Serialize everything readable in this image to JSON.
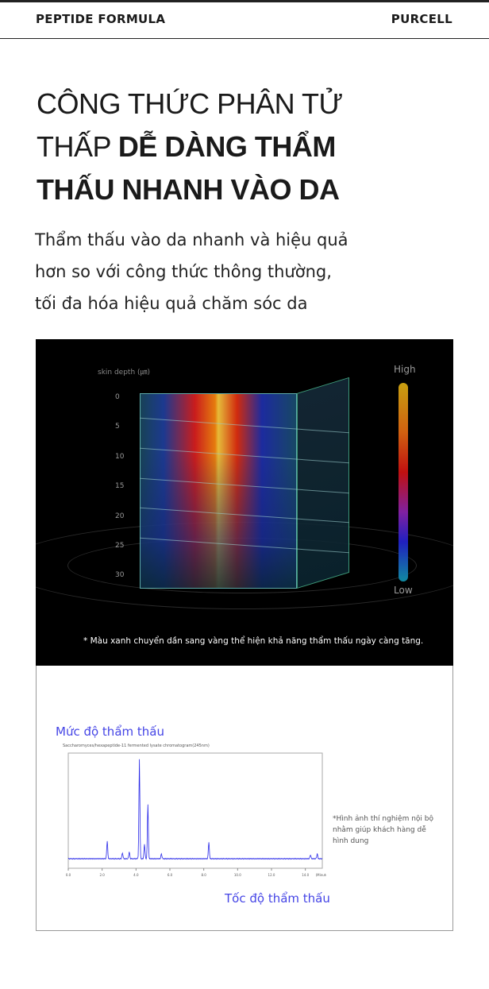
{
  "header": {
    "left": "PEPTIDE FORMULA",
    "right": "PURCELL"
  },
  "headline": {
    "line1": "CÔNG THỨC PHÂN TỬ",
    "line2_light": "THẤP ",
    "line2_bold": "DỄ DÀNG THẨM",
    "line3_bold": "THẤU NHANH VÀO DA"
  },
  "subtitle": [
    "Thẩm thấu vào da nhanh và hiệu quả",
    "hơn so với công thức thông thường,",
    "tối đa hóa hiệu quả chăm sóc da"
  ],
  "heatmap": {
    "depth_label": "skin depth (㎛)",
    "depth_ticks": [
      "0",
      "5",
      "10",
      "15",
      "20",
      "25",
      "30"
    ],
    "scale_high": "High",
    "scale_low": "Low",
    "note": "* Màu xanh chuyển dần sang vàng thể hiện khả năng thẩm thấu ngày càng tăng."
  },
  "chart_data": {
    "type": "line",
    "title": "Mức độ thẩm thấu",
    "caption": "Saccharomyces/hexapeptide-11 fermented lysate chromatogram(245nm)",
    "xlabel": "Tốc độ thẩm thấu",
    "x_unit": "(Minute)",
    "x_ticks": [
      "0.0",
      "2.0",
      "4.0",
      "6.0",
      "8.0",
      "10.0",
      "12.0",
      "14.0"
    ],
    "xlim": [
      0,
      15
    ],
    "color": "#2a2ae8",
    "peaks": [
      {
        "x": 2.3,
        "h": 0.18
      },
      {
        "x": 3.2,
        "h": 0.06
      },
      {
        "x": 3.6,
        "h": 0.07
      },
      {
        "x": 4.2,
        "h": 1.0
      },
      {
        "x": 4.5,
        "h": 0.15
      },
      {
        "x": 4.7,
        "h": 0.55
      },
      {
        "x": 5.5,
        "h": 0.05
      },
      {
        "x": 8.3,
        "h": 0.17
      },
      {
        "x": 14.3,
        "h": 0.04
      },
      {
        "x": 14.7,
        "h": 0.05
      }
    ]
  },
  "side_note": "*Hình ảnh thí nghiệm nội bộ nhằm giúp khách hàng dễ hình dung"
}
